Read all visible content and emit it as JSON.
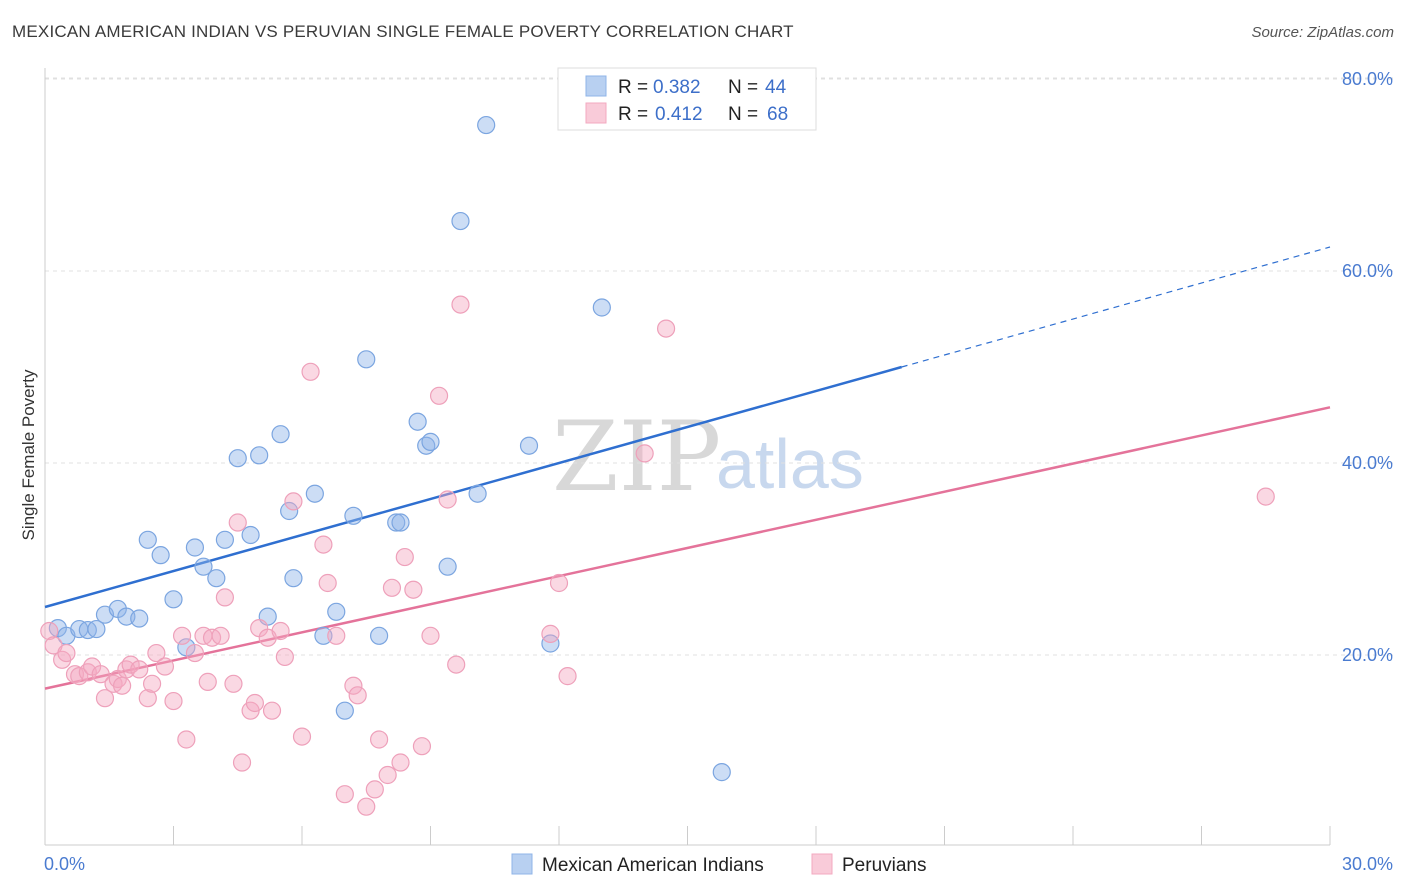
{
  "title": "MEXICAN AMERICAN INDIAN VS PERUVIAN SINGLE FEMALE POVERTY CORRELATION CHART",
  "source": "Source: ZipAtlas.com",
  "watermark": {
    "part1": "ZIP",
    "part2": "atlas"
  },
  "legend": {
    "r_label": "R =",
    "n_label": "N =",
    "rows": [
      {
        "r": "0.382",
        "n": "44"
      },
      {
        "r": "0.412",
        "n": "68"
      }
    ]
  },
  "chart_data": {
    "type": "scatter",
    "ylabel": "Single Female Poverty",
    "xlim": [
      0,
      30
    ],
    "ylim": [
      0,
      85
    ],
    "x_tick_labels": [
      "0.0%",
      "30.0%"
    ],
    "y_ticks": [
      20,
      40,
      60,
      80
    ],
    "y_tick_labels": [
      "20.0%",
      "40.0%",
      "60.0%",
      "80.0%"
    ],
    "grid": true,
    "colors": {
      "blue": "#8fb4e8",
      "blue_line": "#2f6fd0",
      "pink": "#f3a9c0",
      "pink_line": "#e4739a"
    },
    "series": [
      {
        "name": "Mexican American Indians",
        "color": "#8fb4e8",
        "trend": {
          "x0": 0,
          "y0": 25.0,
          "x1": 20,
          "y1": 50.0,
          "x_dash_end": 30,
          "y_dash_end": 62.5
        },
        "points": [
          [
            0.3,
            22.8
          ],
          [
            0.5,
            22.0
          ],
          [
            0.8,
            22.7
          ],
          [
            1.0,
            22.6
          ],
          [
            1.2,
            22.7
          ],
          [
            1.4,
            24.2
          ],
          [
            1.7,
            24.8
          ],
          [
            1.9,
            24.0
          ],
          [
            2.2,
            23.8
          ],
          [
            2.4,
            32.0
          ],
          [
            2.7,
            30.4
          ],
          [
            3.0,
            25.8
          ],
          [
            3.3,
            20.8
          ],
          [
            3.5,
            31.2
          ],
          [
            3.7,
            29.2
          ],
          [
            4.0,
            28.0
          ],
          [
            4.2,
            32.0
          ],
          [
            4.5,
            40.5
          ],
          [
            4.8,
            32.5
          ],
          [
            5.0,
            40.8
          ],
          [
            5.2,
            24.0
          ],
          [
            5.5,
            43.0
          ],
          [
            5.7,
            35.0
          ],
          [
            5.8,
            28.0
          ],
          [
            6.3,
            36.8
          ],
          [
            6.5,
            22.0
          ],
          [
            6.8,
            24.5
          ],
          [
            7.0,
            14.2
          ],
          [
            7.2,
            34.5
          ],
          [
            7.5,
            50.8
          ],
          [
            7.8,
            22.0
          ],
          [
            8.2,
            33.8
          ],
          [
            8.3,
            33.8
          ],
          [
            8.7,
            44.3
          ],
          [
            8.9,
            41.8
          ],
          [
            9.0,
            42.2
          ],
          [
            9.4,
            29.2
          ],
          [
            9.7,
            65.2
          ],
          [
            10.1,
            36.8
          ],
          [
            10.3,
            75.2
          ],
          [
            11.3,
            41.8
          ],
          [
            11.8,
            21.2
          ],
          [
            13.0,
            56.2
          ],
          [
            15.8,
            7.8
          ]
        ]
      },
      {
        "name": "Peruvians",
        "color": "#f3a9c0",
        "trend": {
          "x0": 0,
          "y0": 16.5,
          "x1": 30,
          "y1": 45.8
        },
        "points": [
          [
            0.1,
            22.5
          ],
          [
            0.2,
            21.0
          ],
          [
            0.4,
            19.5
          ],
          [
            0.5,
            20.2
          ],
          [
            0.7,
            18.0
          ],
          [
            0.8,
            17.8
          ],
          [
            1.0,
            18.2
          ],
          [
            1.1,
            18.8
          ],
          [
            1.3,
            18.0
          ],
          [
            1.4,
            15.5
          ],
          [
            1.6,
            17.0
          ],
          [
            1.7,
            17.5
          ],
          [
            1.8,
            16.8
          ],
          [
            1.9,
            18.5
          ],
          [
            2.0,
            19.0
          ],
          [
            2.2,
            18.5
          ],
          [
            2.4,
            15.5
          ],
          [
            2.5,
            17.0
          ],
          [
            2.6,
            20.2
          ],
          [
            2.8,
            18.8
          ],
          [
            3.0,
            15.2
          ],
          [
            3.2,
            22.0
          ],
          [
            3.3,
            11.2
          ],
          [
            3.5,
            20.2
          ],
          [
            3.7,
            22.0
          ],
          [
            3.8,
            17.2
          ],
          [
            3.9,
            21.8
          ],
          [
            4.1,
            22.0
          ],
          [
            4.2,
            26.0
          ],
          [
            4.4,
            17.0
          ],
          [
            4.5,
            33.8
          ],
          [
            4.6,
            8.8
          ],
          [
            4.8,
            14.2
          ],
          [
            4.9,
            15.0
          ],
          [
            5.0,
            22.8
          ],
          [
            5.2,
            21.8
          ],
          [
            5.3,
            14.2
          ],
          [
            5.5,
            22.5
          ],
          [
            5.6,
            19.8
          ],
          [
            5.8,
            36.0
          ],
          [
            6.0,
            11.5
          ],
          [
            6.2,
            49.5
          ],
          [
            6.5,
            31.5
          ],
          [
            6.6,
            27.5
          ],
          [
            6.8,
            22.0
          ],
          [
            7.0,
            5.5
          ],
          [
            7.2,
            16.8
          ],
          [
            7.3,
            15.8
          ],
          [
            7.5,
            4.2
          ],
          [
            7.7,
            6.0
          ],
          [
            7.8,
            11.2
          ],
          [
            8.0,
            7.5
          ],
          [
            8.1,
            27.0
          ],
          [
            8.3,
            8.8
          ],
          [
            8.4,
            30.2
          ],
          [
            8.6,
            26.8
          ],
          [
            8.8,
            10.5
          ],
          [
            9.0,
            22.0
          ],
          [
            9.2,
            47.0
          ],
          [
            9.4,
            36.2
          ],
          [
            9.6,
            19.0
          ],
          [
            9.7,
            56.5
          ],
          [
            11.8,
            22.2
          ],
          [
            12.0,
            27.5
          ],
          [
            12.2,
            17.8
          ],
          [
            14.0,
            41.0
          ],
          [
            14.5,
            54.0
          ],
          [
            28.5,
            36.5
          ]
        ]
      }
    ]
  }
}
